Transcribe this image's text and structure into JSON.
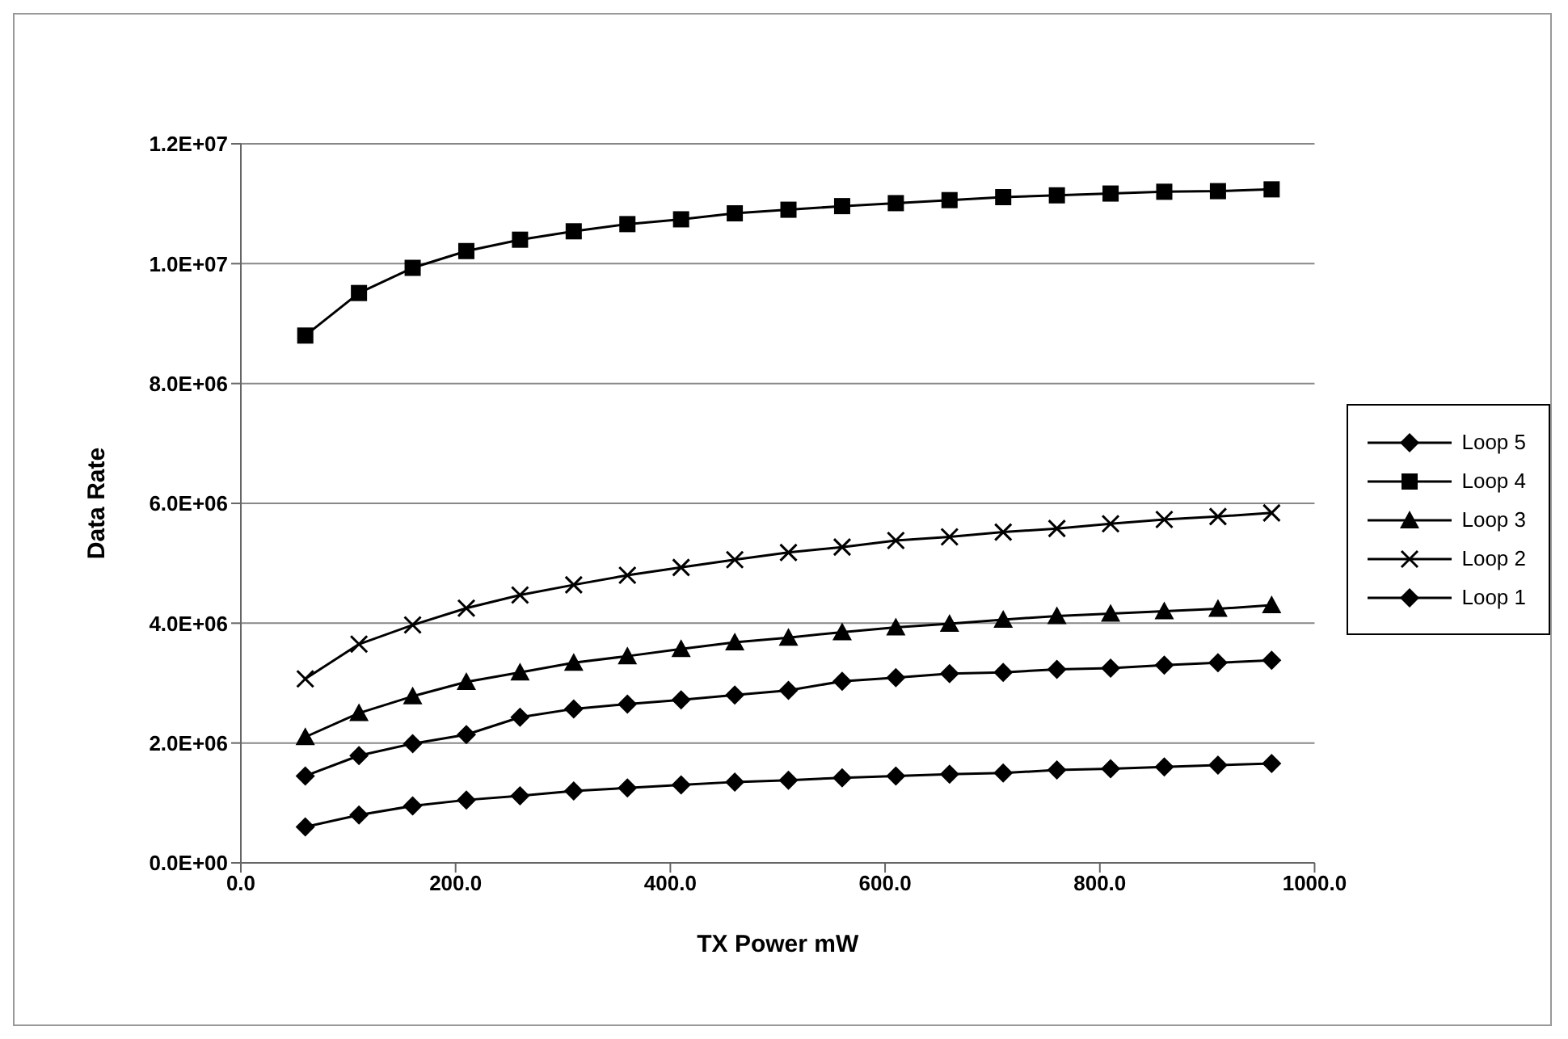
{
  "chart_data": {
    "type": "line",
    "xlabel": "TX Power mW",
    "ylabel": "Data Rate",
    "x": [
      60,
      110,
      160,
      210,
      260,
      310,
      360,
      410,
      460,
      510,
      560,
      610,
      660,
      710,
      760,
      810,
      860,
      910,
      960
    ],
    "series": [
      {
        "name": "Loop 5",
        "color": "#000000",
        "marker": "diamond",
        "values": [
          600000,
          800000,
          950000,
          1050000,
          1120000,
          1200000,
          1250000,
          1300000,
          1350000,
          1380000,
          1420000,
          1450000,
          1480000,
          1500000,
          1550000,
          1570000,
          1600000,
          1630000,
          1660000
        ]
      },
      {
        "name": "Loop 4",
        "color": "#000000",
        "marker": "square",
        "values": [
          8800000,
          9510000,
          9930000,
          10210000,
          10400000,
          10540000,
          10660000,
          10740000,
          10840000,
          10900000,
          10960000,
          11010000,
          11060000,
          11110000,
          11140000,
          11170000,
          11200000,
          11210000,
          11240000
        ]
      },
      {
        "name": "Loop 3",
        "color": "#000000",
        "marker": "triangle",
        "values": [
          2100000,
          2500000,
          2780000,
          3020000,
          3180000,
          3340000,
          3450000,
          3570000,
          3680000,
          3760000,
          3850000,
          3930000,
          3990000,
          4060000,
          4120000,
          4160000,
          4200000,
          4240000,
          4300000
        ]
      },
      {
        "name": "Loop 2",
        "color": "#000000",
        "marker": "cross",
        "values": [
          3070000,
          3650000,
          3970000,
          4250000,
          4470000,
          4640000,
          4800000,
          4930000,
          5060000,
          5180000,
          5270000,
          5380000,
          5440000,
          5520000,
          5580000,
          5660000,
          5730000,
          5780000,
          5840000
        ]
      },
      {
        "name": "Loop 1",
        "color": "#000000",
        "marker": "diamond",
        "values": [
          1450000,
          1790000,
          1990000,
          2140000,
          2430000,
          2570000,
          2650000,
          2720000,
          2800000,
          2880000,
          3030000,
          3090000,
          3160000,
          3180000,
          3230000,
          3250000,
          3300000,
          3340000,
          3380000
        ]
      }
    ],
    "xlim": [
      0,
      1000
    ],
    "xticks": [
      {
        "value": 0,
        "label": "0.0"
      },
      {
        "value": 200,
        "label": "200.0"
      },
      {
        "value": 400,
        "label": "400.0"
      },
      {
        "value": 600,
        "label": "600.0"
      },
      {
        "value": 800,
        "label": "800.0"
      },
      {
        "value": 1000,
        "label": "1000.0"
      }
    ],
    "ylim": [
      0,
      12000000
    ],
    "yticks": [
      {
        "value": 0,
        "label": "0.0E+00"
      },
      {
        "value": 2000000,
        "label": "2.0E+06"
      },
      {
        "value": 4000000,
        "label": "4.0E+06"
      },
      {
        "value": 6000000,
        "label": "6.0E+06"
      },
      {
        "value": 8000000,
        "label": "8.0E+06"
      },
      {
        "value": 10000000,
        "label": "1.0E+07"
      },
      {
        "value": 12000000,
        "label": "1.2E+07"
      }
    ],
    "grid": "y",
    "legend": "right"
  }
}
